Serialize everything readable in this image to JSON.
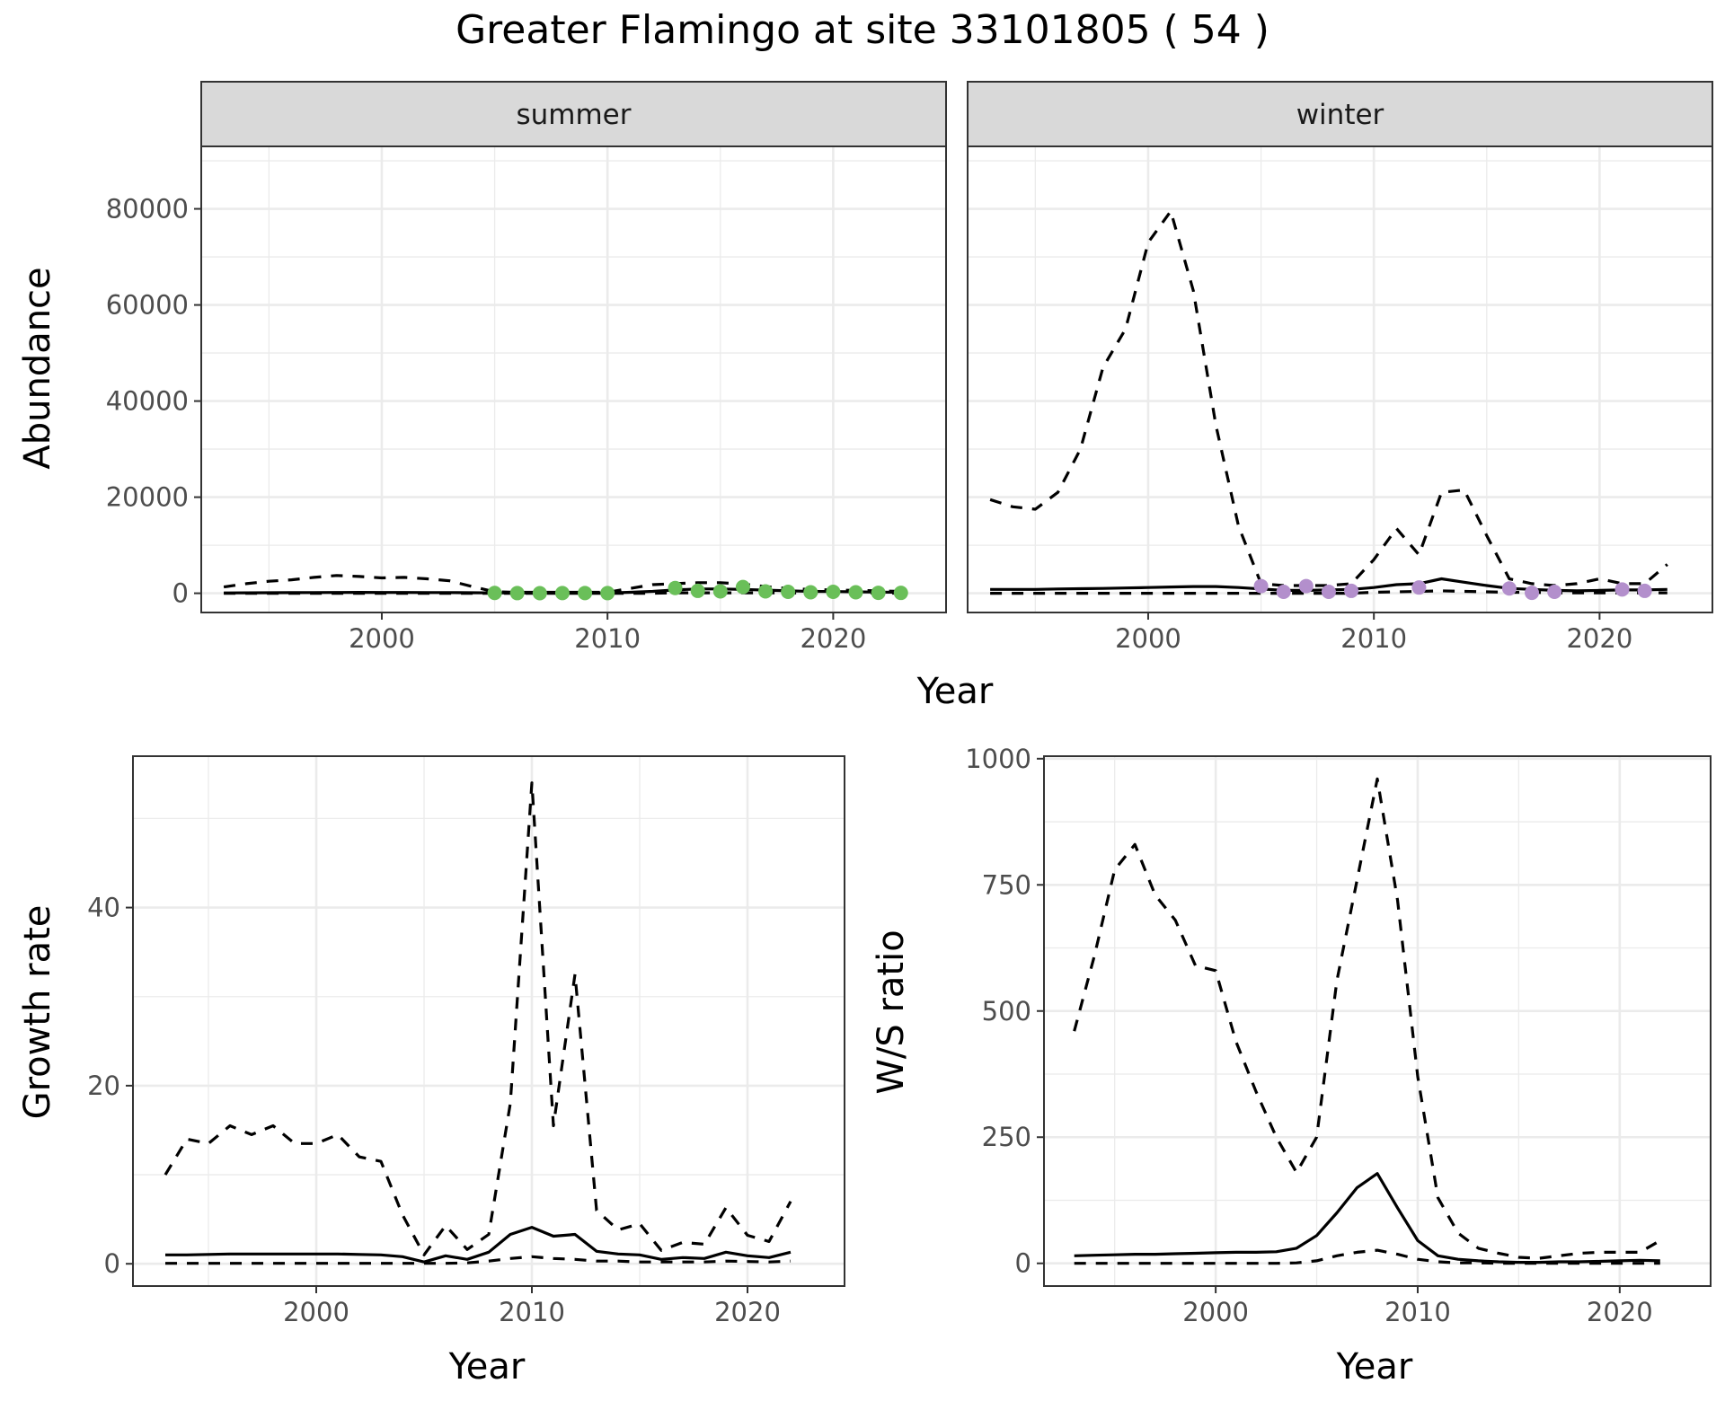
{
  "figure": {
    "title": "Greater Flamingo at site 33101805 ( 54 )"
  },
  "colors": {
    "summer_points": "#6abf59",
    "winter_points": "#b38fcc",
    "lines": "#000000",
    "strip": "#d9d9d9",
    "grid": "#ebebeb"
  },
  "chart_data": [
    {
      "id": "abundance",
      "type": "line",
      "facets": [
        "summer",
        "winter"
      ],
      "xlabel": "Year",
      "ylabel": "Abundance",
      "xlim": [
        1992,
        2025
      ],
      "ylim": [
        -4000,
        93000
      ],
      "xticks": [
        2000,
        2010,
        2020
      ],
      "yticks": [
        0,
        20000,
        40000,
        60000,
        80000
      ],
      "ytick_labels": [
        "0",
        "20000",
        "40000",
        "60000",
        "80000"
      ],
      "grid": true,
      "x": [
        1993,
        1994,
        1995,
        1996,
        1997,
        1998,
        1999,
        2000,
        2001,
        2002,
        2003,
        2004,
        2005,
        2006,
        2007,
        2008,
        2009,
        2010,
        2011,
        2012,
        2013,
        2014,
        2015,
        2016,
        2017,
        2018,
        2019,
        2020,
        2021,
        2022,
        2023
      ],
      "panels": {
        "summer": {
          "estimate": [
            80,
            90,
            110,
            130,
            150,
            170,
            180,
            170,
            160,
            150,
            140,
            120,
            80,
            60,
            50,
            40,
            40,
            60,
            200,
            400,
            700,
            900,
            900,
            800,
            650,
            500,
            400,
            350,
            300,
            250,
            200
          ],
          "upper": [
            1300,
            2000,
            2500,
            2800,
            3300,
            3700,
            3500,
            3200,
            3300,
            3000,
            2600,
            1400,
            300,
            200,
            200,
            200,
            200,
            200,
            1000,
            1800,
            2000,
            2200,
            2200,
            1900,
            1400,
            1000,
            800,
            700,
            600,
            500,
            400
          ],
          "lower": [
            0,
            0,
            0,
            0,
            0,
            0,
            0,
            0,
            0,
            0,
            0,
            0,
            0,
            0,
            0,
            0,
            0,
            0,
            0,
            0,
            100,
            100,
            100,
            100,
            100,
            50,
            50,
            50,
            50,
            20,
            20
          ],
          "obs_x": [
            2005,
            2006,
            2007,
            2008,
            2009,
            2010,
            2013,
            2014,
            2015,
            2016,
            2017,
            2018,
            2019,
            2020,
            2021,
            2022,
            2023
          ],
          "obs_y": [
            60,
            30,
            20,
            40,
            50,
            30,
            1100,
            500,
            400,
            1300,
            400,
            300,
            200,
            300,
            200,
            100,
            80
          ]
        },
        "winter": {
          "estimate": [
            800,
            800,
            800,
            900,
            950,
            1000,
            1100,
            1200,
            1300,
            1400,
            1400,
            1200,
            900,
            600,
            600,
            700,
            800,
            1200,
            1800,
            2000,
            3000,
            2300,
            1600,
            1000,
            800,
            600,
            500,
            600,
            700,
            700,
            800
          ],
          "upper": [
            19500,
            18000,
            17500,
            21000,
            30000,
            47000,
            55000,
            73000,
            79500,
            63000,
            35000,
            14000,
            2000,
            1600,
            1600,
            1600,
            2000,
            7000,
            13500,
            8000,
            21000,
            21500,
            12000,
            3000,
            2000,
            1600,
            2000,
            3000,
            2000,
            2000,
            6000
          ],
          "lower": [
            0,
            0,
            0,
            0,
            0,
            0,
            0,
            0,
            0,
            0,
            0,
            0,
            0,
            0,
            0,
            0,
            0,
            200,
            300,
            400,
            500,
            400,
            300,
            200,
            200,
            100,
            100,
            100,
            100,
            100,
            100
          ],
          "obs_x": [
            2005,
            2006,
            2007,
            2008,
            2009,
            2012,
            2016,
            2017,
            2018,
            2021,
            2022
          ],
          "obs_y": [
            1500,
            300,
            1500,
            300,
            500,
            1200,
            1000,
            100,
            300,
            800,
            500
          ]
        }
      }
    },
    {
      "id": "growth_rate",
      "type": "line",
      "xlabel": "Year",
      "ylabel": "Growth rate",
      "xlim": [
        1991.5,
        2024.5
      ],
      "ylim": [
        -2.5,
        57
      ],
      "xticks": [
        2000,
        2010,
        2020
      ],
      "yticks": [
        0,
        20,
        40
      ],
      "ytick_labels": [
        "0",
        "20",
        "40"
      ],
      "grid": true,
      "x": [
        1993,
        1994,
        1995,
        1996,
        1997,
        1998,
        1999,
        2000,
        2001,
        2002,
        2003,
        2004,
        2005,
        2006,
        2007,
        2008,
        2009,
        2010,
        2011,
        2012,
        2013,
        2014,
        2015,
        2016,
        2017,
        2018,
        2019,
        2020,
        2021,
        2022
      ],
      "estimate": [
        1.0,
        1.0,
        1.05,
        1.1,
        1.1,
        1.1,
        1.1,
        1.1,
        1.1,
        1.05,
        1.0,
        0.8,
        0.2,
        0.9,
        0.5,
        1.3,
        3.3,
        4.1,
        3.1,
        3.3,
        1.4,
        1.1,
        1.0,
        0.5,
        0.7,
        0.6,
        1.3,
        0.9,
        0.7,
        1.3
      ],
      "upper": [
        10,
        14,
        13.5,
        15.5,
        14.5,
        15.5,
        13.5,
        13.5,
        14.5,
        12,
        11.5,
        5.5,
        1.0,
        4.3,
        1.6,
        3.3,
        18,
        54,
        15.5,
        32.5,
        6,
        3.8,
        4.5,
        1.5,
        2.4,
        2.2,
        6.3,
        3.2,
        2.5,
        7
      ],
      "lower": [
        0.05,
        0.05,
        0.05,
        0.05,
        0.05,
        0.05,
        0.05,
        0.05,
        0.05,
        0.05,
        0.05,
        0.05,
        0.05,
        0.05,
        0.1,
        0.3,
        0.6,
        0.8,
        0.6,
        0.5,
        0.3,
        0.3,
        0.2,
        0.2,
        0.2,
        0.2,
        0.3,
        0.25,
        0.2,
        0.3
      ]
    },
    {
      "id": "ws_ratio",
      "type": "line",
      "xlabel": "Year",
      "ylabel": "W/S ratio",
      "xlim": [
        1991.5,
        2024.5
      ],
      "ylim": [
        -45,
        1005
      ],
      "xticks": [
        2000,
        2010,
        2020
      ],
      "yticks": [
        0,
        250,
        500,
        750,
        1000
      ],
      "ytick_labels": [
        "0",
        "250",
        "500",
        "750",
        "1000"
      ],
      "grid": true,
      "x": [
        1993,
        1994,
        1995,
        1996,
        1997,
        1998,
        1999,
        2000,
        2001,
        2002,
        2003,
        2004,
        2005,
        2006,
        2007,
        2008,
        2009,
        2010,
        2011,
        2012,
        2013,
        2014,
        2015,
        2016,
        2017,
        2018,
        2019,
        2020,
        2021,
        2022
      ],
      "estimate": [
        15,
        16,
        17,
        18,
        18,
        19,
        20,
        21,
        22,
        22,
        23,
        30,
        55,
        100,
        150,
        178,
        110,
        45,
        15,
        8,
        5,
        3,
        2,
        2,
        3,
        3,
        4,
        5,
        6,
        5
      ],
      "upper": [
        460,
        610,
        780,
        830,
        730,
        680,
        590,
        580,
        440,
        340,
        250,
        180,
        250,
        560,
        760,
        960,
        720,
        370,
        130,
        60,
        30,
        20,
        12,
        10,
        15,
        20,
        22,
        22,
        22,
        45
      ],
      "lower": [
        0,
        0,
        0,
        0,
        0,
        0,
        0,
        0,
        0,
        0,
        0,
        1,
        5,
        15,
        22,
        26,
        18,
        8,
        3,
        1,
        1,
        0,
        0,
        0,
        0,
        0,
        0,
        0,
        0,
        0
      ]
    }
  ]
}
